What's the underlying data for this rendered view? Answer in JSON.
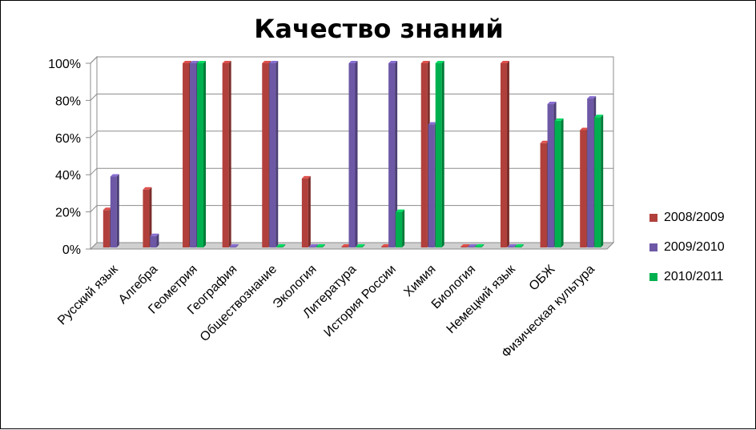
{
  "chart_data": {
    "type": "bar",
    "title": "Качество знаний",
    "categories": [
      "Русский язык",
      "Алгебра",
      "Геометрия",
      "География",
      "Обществознание",
      "Экология",
      "Литература",
      "История России",
      "Химия",
      "Биология",
      "Немецкий язык",
      "ОБЖ",
      "Физическая культура"
    ],
    "series": [
      {
        "name": "2008/2009",
        "color": "#b1403c",
        "values": [
          21,
          32,
          100,
          100,
          100,
          38,
          0,
          0,
          100,
          0,
          100,
          57,
          64
        ]
      },
      {
        "name": "2009/2010",
        "color": "#6d58a6",
        "values": [
          39,
          7,
          100,
          0,
          100,
          0,
          100,
          100,
          67,
          0,
          0,
          78,
          81
        ]
      },
      {
        "name": "2010/2011",
        "color": "#00b04f",
        "values": [
          null,
          null,
          100,
          null,
          0,
          0,
          0,
          20,
          100,
          0,
          0,
          69,
          71
        ]
      }
    ],
    "yticks": [
      "0%",
      "20%",
      "40%",
      "60%",
      "80%",
      "100%"
    ],
    "ylim": [
      0,
      100
    ],
    "grid": true,
    "legend_position": "right"
  }
}
